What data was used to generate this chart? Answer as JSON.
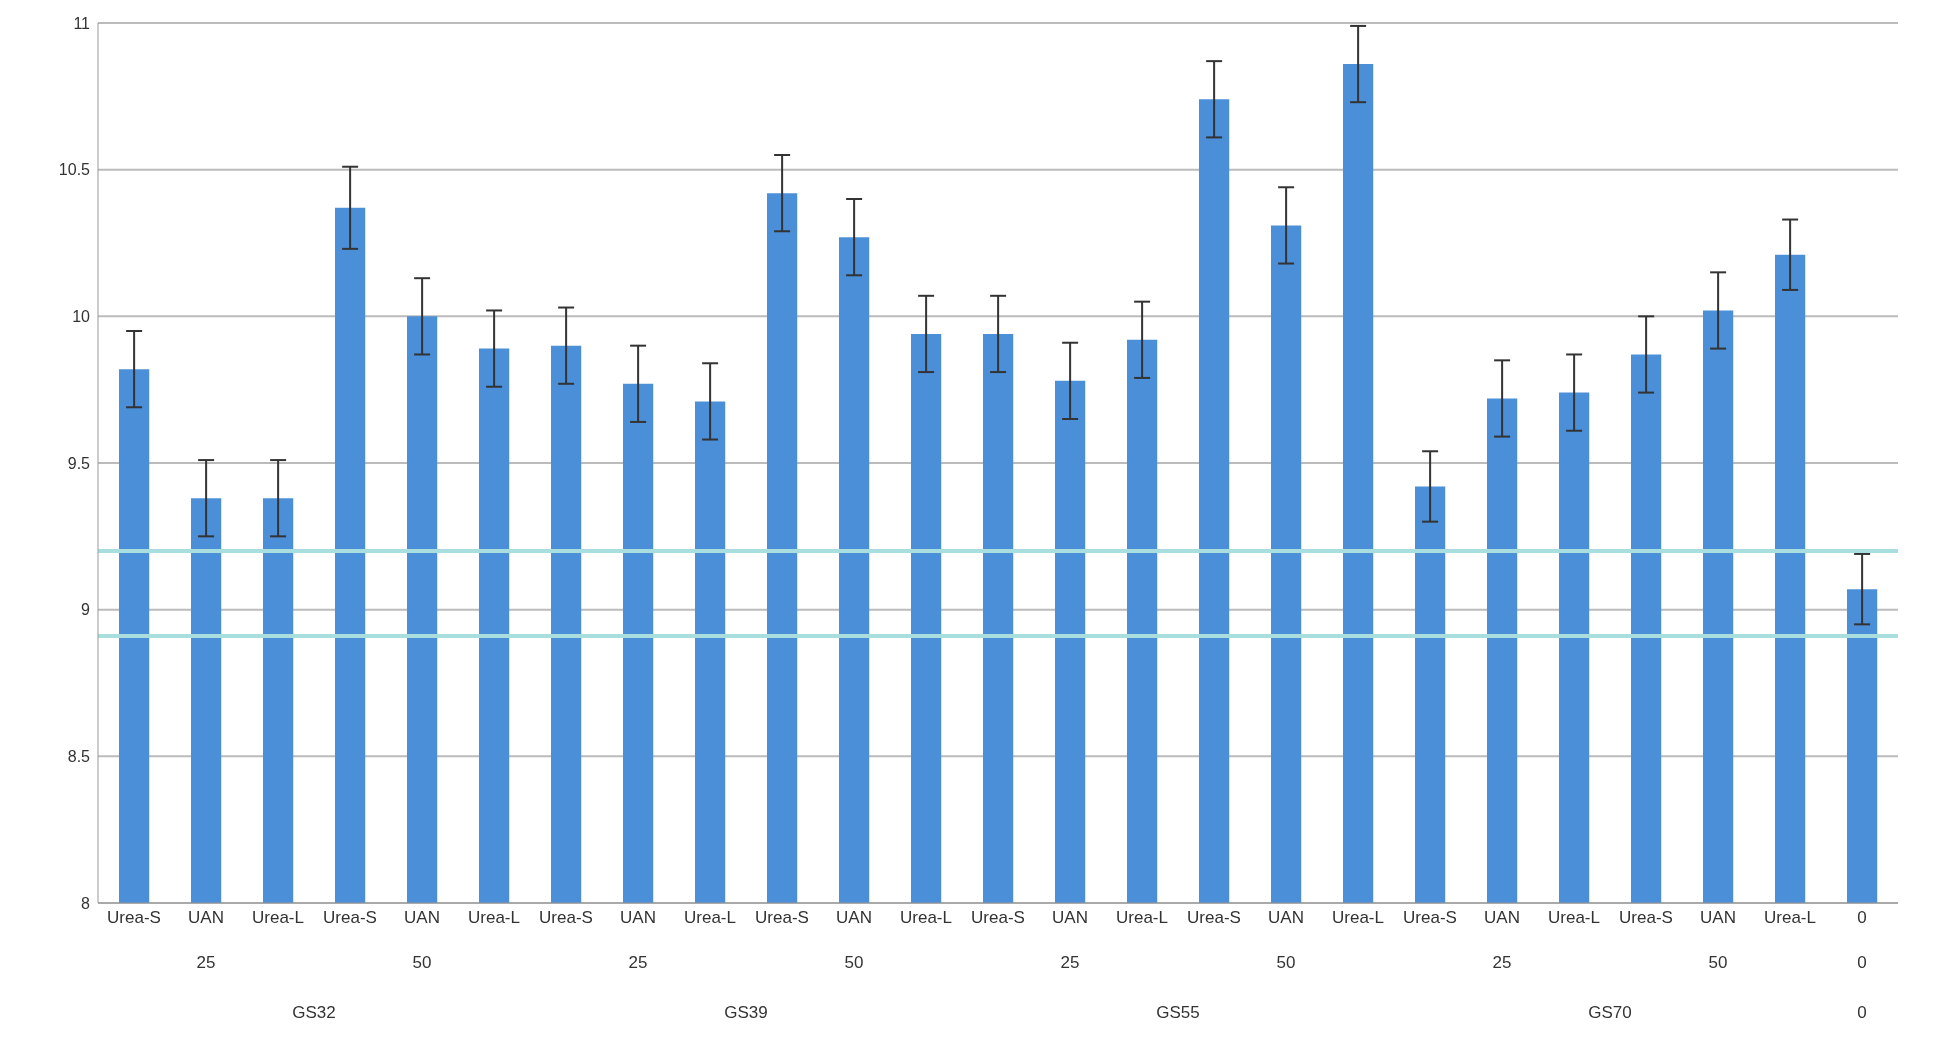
{
  "chart_data": {
    "type": "bar",
    "categories": [
      "Urea-S",
      "UAN",
      "Urea-L",
      "Urea-S",
      "UAN",
      "Urea-L",
      "Urea-S",
      "UAN",
      "Urea-L",
      "Urea-S",
      "UAN",
      "Urea-L",
      "Urea-S",
      "UAN",
      "Urea-L",
      "Urea-S",
      "UAN",
      "Urea-L",
      "Urea-S",
      "UAN",
      "Urea-L",
      "Urea-S",
      "UAN",
      "Urea-L",
      "0"
    ],
    "values": [
      9.82,
      9.38,
      9.38,
      10.37,
      10.0,
      9.89,
      9.9,
      9.77,
      9.71,
      10.42,
      10.27,
      9.94,
      9.94,
      9.78,
      9.92,
      10.74,
      10.31,
      10.86,
      9.42,
      9.72,
      9.74,
      9.87,
      10.02,
      10.21,
      9.07
    ],
    "errors": [
      0.13,
      0.13,
      0.13,
      0.14,
      0.13,
      0.13,
      0.13,
      0.13,
      0.13,
      0.13,
      0.13,
      0.13,
      0.13,
      0.13,
      0.13,
      0.13,
      0.13,
      0.13,
      0.12,
      0.13,
      0.13,
      0.13,
      0.13,
      0.12,
      0.12
    ],
    "color": "#4a8fd8",
    "ylim": [
      8,
      11
    ],
    "yticks": [
      8,
      8.5,
      9,
      9.5,
      10,
      10.5,
      11
    ],
    "grid": "y",
    "ref_lines": [
      {
        "axis": "y",
        "value": 9.2,
        "color": "#a8dede"
      },
      {
        "axis": "y",
        "value": 8.91,
        "color": "#a8dede"
      }
    ],
    "annotations": [
      "25",
      "50",
      "25",
      "50",
      "25",
      "50",
      "25",
      "50",
      "0",
      "GS32",
      "GS39",
      "GS55",
      "GS70",
      "0"
    ]
  }
}
